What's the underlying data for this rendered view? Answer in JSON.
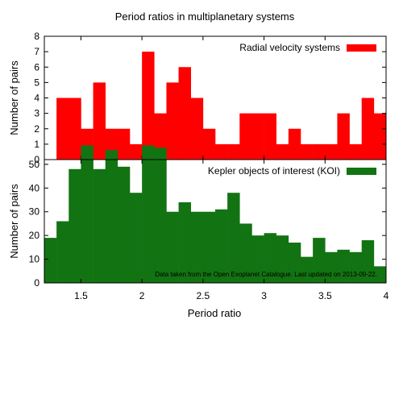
{
  "chart_data": {
    "type": "bar",
    "title": "Period ratios in multiplanetary systems",
    "xlabel": "Period ratio",
    "xlim": [
      1.2,
      4.0
    ],
    "x_ticks": [
      "1.5",
      "2",
      "2.5",
      "3",
      "3.5",
      "4"
    ],
    "bin_width": 0.1,
    "panels": [
      {
        "ylabel": "Number of pairs",
        "ylim": [
          0,
          8
        ],
        "y_ticks": [
          "0",
          "1",
          "2",
          "3",
          "4",
          "5",
          "6",
          "7",
          "8"
        ],
        "legend_position": "top-right",
        "series": [
          {
            "name": "Radial velocity systems",
            "color": "#ff0000",
            "bin_starts": [
              1.2,
              1.3,
              1.4,
              1.5,
              1.6,
              1.7,
              1.8,
              1.9,
              2.0,
              2.1,
              2.2,
              2.3,
              2.4,
              2.5,
              2.6,
              2.7,
              2.8,
              2.9,
              3.0,
              3.1,
              3.2,
              3.3,
              3.4,
              3.5,
              3.6,
              3.7,
              3.8,
              3.9
            ],
            "values": [
              0,
              4,
              4,
              2,
              5,
              2,
              2,
              1,
              7,
              3,
              5,
              6,
              4,
              2,
              1,
              1,
              3,
              3,
              3,
              1,
              2,
              1,
              1,
              1,
              3,
              1,
              4,
              3
            ]
          }
        ]
      },
      {
        "ylabel": "Number of pairs",
        "ylim": [
          0,
          52
        ],
        "y_ticks": [
          "0",
          "10",
          "20",
          "30",
          "40",
          "50"
        ],
        "legend_position": "top-right",
        "annotation": "Data taken from the Open Exoplanet Catalogue. Last updated on 2013-09-22.",
        "series": [
          {
            "name": "Kepler objects of interest (KOI)",
            "color": "#127312",
            "bin_starts": [
              1.2,
              1.3,
              1.4,
              1.5,
              1.6,
              1.7,
              1.8,
              1.9,
              2.0,
              2.1,
              2.2,
              2.3,
              2.4,
              2.5,
              2.6,
              2.7,
              2.8,
              2.9,
              3.0,
              3.1,
              3.2,
              3.3,
              3.4,
              3.5,
              3.6,
              3.7,
              3.8,
              3.9
            ],
            "values": [
              19,
              26,
              48,
              58,
              48,
              56,
              49,
              38,
              58,
              57,
              30,
              34,
              30,
              30,
              31,
              38,
              25,
              20,
              21,
              20,
              17,
              11,
              19,
              13,
              14,
              13,
              18,
              7
            ]
          }
        ]
      }
    ]
  }
}
